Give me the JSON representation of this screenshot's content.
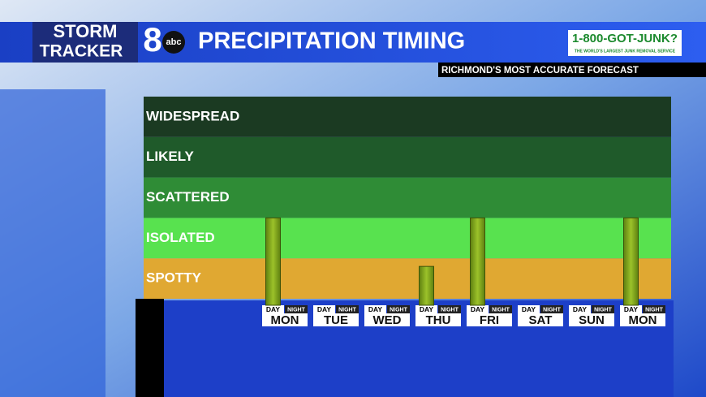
{
  "header": {
    "brand_top": "STORM",
    "brand_bottom": "TRACKER",
    "channel": "8",
    "network": "abc",
    "sponsor": "1-800-GOT-JUNK?",
    "sponsor_tagline": "THE WORLD'S LARGEST JUNK REMOVAL SERVICE",
    "slogan": "RICHMOND'S MOST ACCURATE FORECAST"
  },
  "chart_data": {
    "type": "bar",
    "title": "PRECIPITATION TIMING",
    "categories": [
      "MON",
      "TUE",
      "WED",
      "THU",
      "FRI",
      "SAT",
      "SUN",
      "MON"
    ],
    "series": [
      {
        "name": "DAY",
        "color": "#7fa51c",
        "values": [
          2,
          null,
          null,
          0.8,
          2,
          null,
          null,
          2
        ]
      },
      {
        "name": "NIGHT",
        "color": "#7fa51c",
        "values": [
          null,
          null,
          null,
          null,
          null,
          null,
          null,
          null
        ]
      }
    ],
    "levels": [
      {
        "label": "SPOTTY",
        "color": "#e0a832"
      },
      {
        "label": "ISOLATED",
        "color": "#58e24f"
      },
      {
        "label": "SCATTERED",
        "color": "#2f8c36"
      },
      {
        "label": "LIKELY",
        "color": "#1f5a2a"
      },
      {
        "label": "WIDESPREAD",
        "color": "#1b3a22"
      }
    ],
    "ylim": [
      0,
      5
    ]
  }
}
